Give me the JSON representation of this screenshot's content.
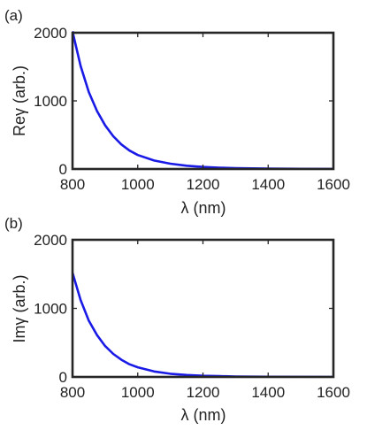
{
  "chart_data": [
    {
      "type": "line",
      "panel_label": "(a)",
      "title": "",
      "xlabel": "λ (nm)",
      "ylabel": "Reγ (arb.)",
      "xlim": [
        800,
        1600
      ],
      "ylim": [
        0,
        2000
      ],
      "xticks": [
        800,
        1000,
        1200,
        1400,
        1600
      ],
      "yticks": [
        0,
        1000,
        2000
      ],
      "grid": false,
      "line_color": "#1a1ae6",
      "series": [
        {
          "x": [
            800,
            825,
            850,
            875,
            900,
            925,
            950,
            975,
            1000,
            1050,
            1100,
            1150,
            1200,
            1250,
            1300,
            1400,
            1500,
            1600
          ],
          "values": [
            2020,
            1510,
            1130,
            850,
            640,
            480,
            360,
            270,
            205,
            125,
            78,
            48,
            30,
            19,
            12,
            5,
            2,
            1
          ]
        }
      ]
    },
    {
      "type": "line",
      "panel_label": "(b)",
      "title": "",
      "xlabel": "λ (nm)",
      "ylabel": "Imγ (arb.)",
      "xlim": [
        800,
        1600
      ],
      "ylim": [
        0,
        2000
      ],
      "xticks": [
        800,
        1000,
        1200,
        1400,
        1600
      ],
      "yticks": [
        0,
        1000,
        2000
      ],
      "grid": false,
      "line_color": "#1a1ae6",
      "series": [
        {
          "x": [
            800,
            825,
            850,
            875,
            900,
            925,
            950,
            975,
            1000,
            1050,
            1100,
            1150,
            1200,
            1250,
            1300,
            1400,
            1500,
            1600
          ],
          "values": [
            1520,
            1120,
            820,
            610,
            450,
            335,
            250,
            185,
            140,
            80,
            47,
            28,
            17,
            11,
            7,
            3,
            1,
            0
          ]
        }
      ]
    }
  ]
}
